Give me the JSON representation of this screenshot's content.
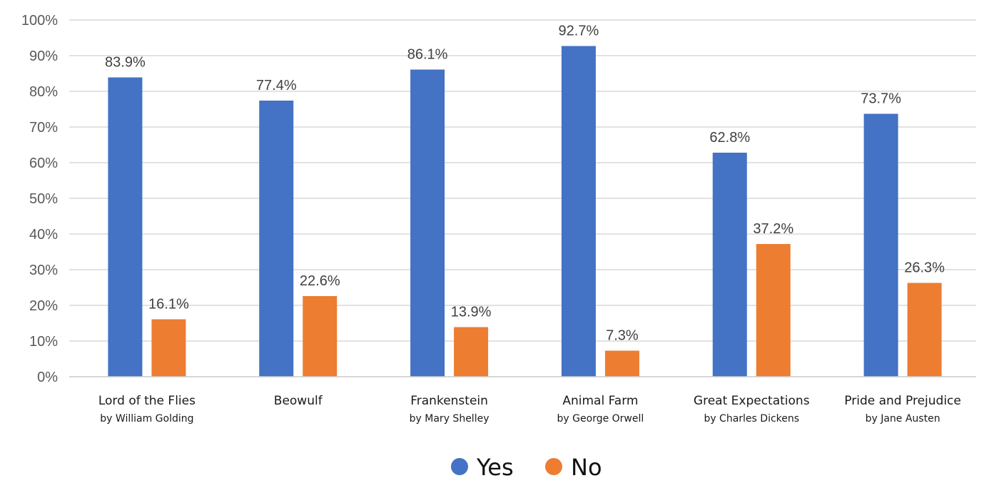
{
  "chart_data": {
    "type": "bar",
    "title": "",
    "xlabel": "",
    "ylabel": "",
    "ylim": [
      0,
      100
    ],
    "yticks": [
      "0%",
      "10%",
      "20%",
      "30%",
      "40%",
      "50%",
      "60%",
      "70%",
      "80%",
      "90%",
      "100%"
    ],
    "grid": true,
    "legend_position": "bottom",
    "categories": [
      {
        "title": "Lord of the Flies",
        "subtitle": "by William Golding"
      },
      {
        "title": "Beowulf",
        "subtitle": ""
      },
      {
        "title": "Frankenstein",
        "subtitle": "by Mary Shelley"
      },
      {
        "title": "Animal Farm",
        "subtitle": "by George Orwell"
      },
      {
        "title": "Great Expectations",
        "subtitle": "by Charles Dickens"
      },
      {
        "title": "Pride and Prejudice",
        "subtitle": "by Jane Austen"
      }
    ],
    "series": [
      {
        "name": "Yes",
        "color": "#4472C4",
        "values": [
          83.9,
          77.4,
          86.1,
          92.7,
          62.8,
          73.7
        ],
        "labels": [
          "83.9%",
          "77.4%",
          "86.1%",
          "92.7%",
          "62.8%",
          "73.7%"
        ]
      },
      {
        "name": "No",
        "color": "#ED7D31",
        "values": [
          16.1,
          22.6,
          13.9,
          7.3,
          37.2,
          26.3
        ],
        "labels": [
          "16.1%",
          "22.6%",
          "13.9%",
          "7.3%",
          "37.2%",
          "26.3%"
        ]
      }
    ]
  }
}
